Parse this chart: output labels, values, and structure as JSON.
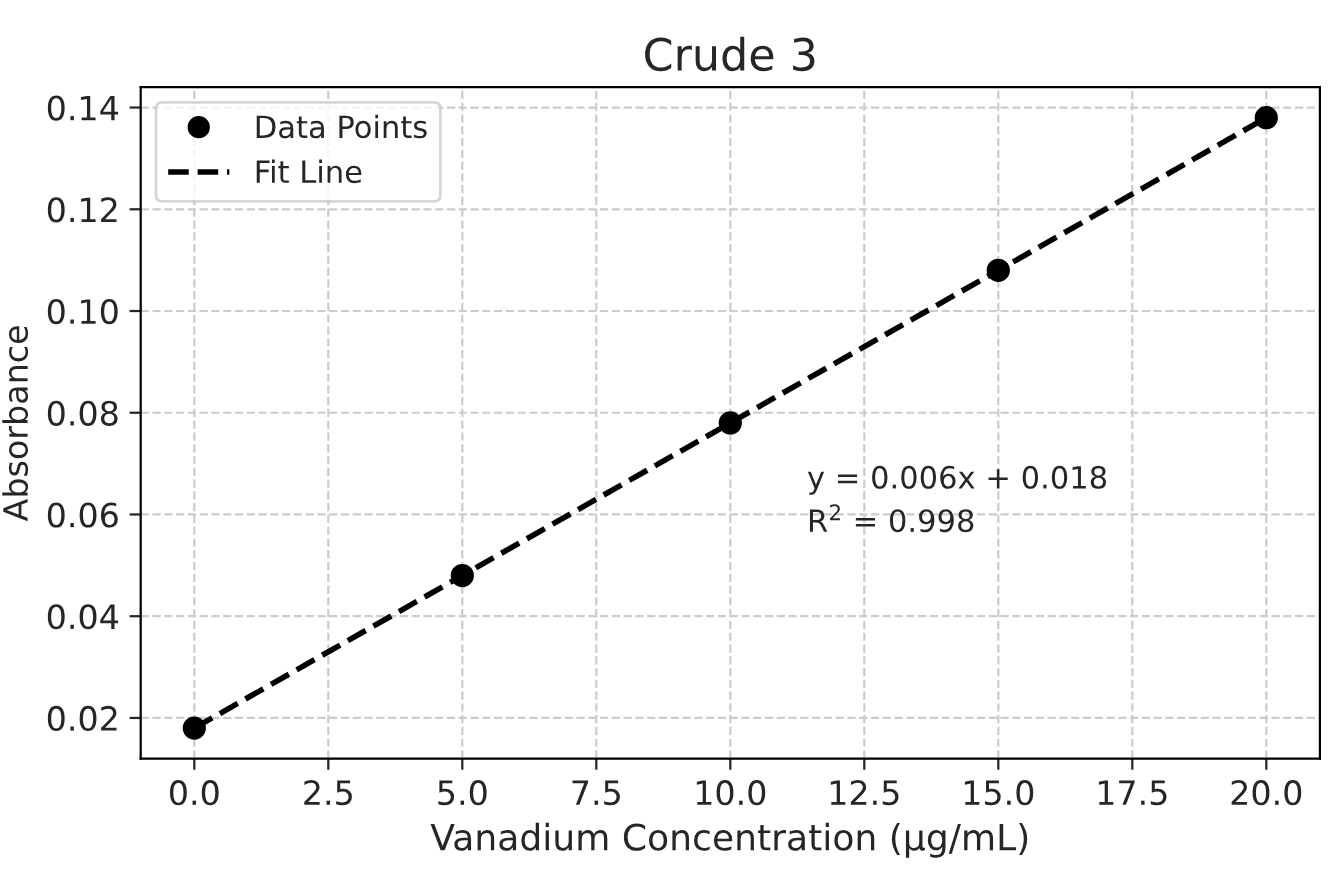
{
  "chart_data": {
    "type": "scatter",
    "title": "Crude 3",
    "xlabel": "Vanadium Concentration (µg/mL)",
    "ylabel": "Absorbance",
    "x": [
      0,
      5,
      10,
      15,
      20
    ],
    "series": [
      {
        "name": "Data Points",
        "color": "#000000",
        "marker": "circle",
        "values": [
          0.018,
          0.048,
          0.078,
          0.108,
          0.138
        ]
      },
      {
        "name": "Fit Line",
        "type": "line",
        "color": "#000000",
        "line_style": "dashed",
        "marker": "none",
        "x": [
          0,
          20
        ],
        "values": [
          0.018,
          0.138
        ]
      }
    ],
    "xlim": [
      -1,
      21
    ],
    "ylim": [
      0.012,
      0.144
    ],
    "xticks": [
      {
        "value": 0,
        "label": "0.0"
      },
      {
        "value": 2.5,
        "label": "2.5"
      },
      {
        "value": 5,
        "label": "5.0"
      },
      {
        "value": 7.5,
        "label": "7.5"
      },
      {
        "value": 10,
        "label": "10.0"
      },
      {
        "value": 12.5,
        "label": "12.5"
      },
      {
        "value": 15,
        "label": "15.0"
      },
      {
        "value": 17.5,
        "label": "17.5"
      },
      {
        "value": 20,
        "label": "20.0"
      }
    ],
    "yticks": [
      {
        "value": 0.02,
        "label": "0.02"
      },
      {
        "value": 0.04,
        "label": "0.04"
      },
      {
        "value": 0.06,
        "label": "0.06"
      },
      {
        "value": 0.08,
        "label": "0.08"
      },
      {
        "value": 0.1,
        "label": "0.10"
      },
      {
        "value": 0.12,
        "label": "0.12"
      },
      {
        "value": 0.14,
        "label": "0.14"
      }
    ],
    "annotations": [
      "y = 0.006x + 0.018",
      "R$^{2}$ = 0.998"
    ],
    "grid": true,
    "legend": "top left"
  }
}
